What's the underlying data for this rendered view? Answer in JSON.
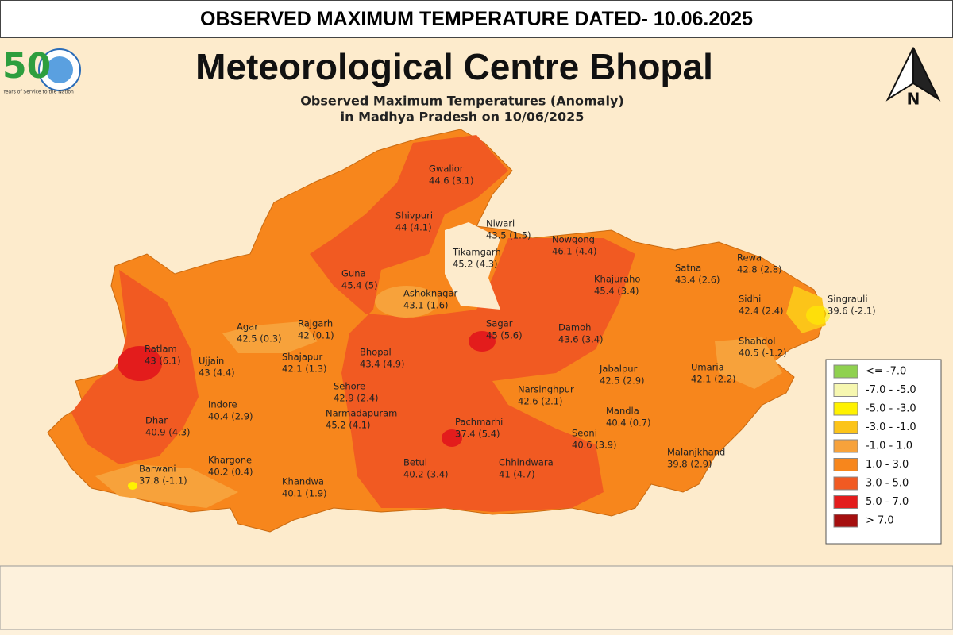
{
  "header": {
    "title": "OBSERVED MAXIMUM TEMPERATURE DATED- 10.06.2025"
  },
  "logo": {
    "number": "50",
    "caption": "Years of Service to the Nation"
  },
  "title": "Meteorological Centre Bhopal",
  "subtitle": [
    "Observed Maximum Temperatures (Anomaly)",
    "in Madhya Pradesh on 10/06/2025"
  ],
  "north": "N",
  "cities": [
    {
      "name": "Gwalior",
      "reading": "44.6 (3.1)"
    },
    {
      "name": "Shivpuri",
      "reading": "44 (4.1)"
    },
    {
      "name": "Niwari",
      "reading": "43.5 (1.5)"
    },
    {
      "name": "Nowgong",
      "reading": "46.1 (4.4)"
    },
    {
      "name": "Tikamgarh",
      "reading": "45.2 (4.3)"
    },
    {
      "name": "Guna",
      "reading": "45.4 (5)"
    },
    {
      "name": "Ashoknagar",
      "reading": "43.1 (1.6)"
    },
    {
      "name": "Khajuraho",
      "reading": "45.4 (3.4)"
    },
    {
      "name": "Satna",
      "reading": "43.4 (2.6)"
    },
    {
      "name": "Rewa",
      "reading": "42.8 (2.8)"
    },
    {
      "name": "Singrauli",
      "reading": "39.6 (-2.1)"
    },
    {
      "name": "Sidhi",
      "reading": "42.4 (2.4)"
    },
    {
      "name": "Agar",
      "reading": "42.5 (0.3)"
    },
    {
      "name": "Rajgarh",
      "reading": "42 (0.1)"
    },
    {
      "name": "Sagar",
      "reading": "45 (5.6)"
    },
    {
      "name": "Damoh",
      "reading": "43.6 (3.4)"
    },
    {
      "name": "Shahdol",
      "reading": "40.5 (-1.2)"
    },
    {
      "name": "Ratlam",
      "reading": "43 (6.1)"
    },
    {
      "name": "Ujjain",
      "reading": "43 (4.4)"
    },
    {
      "name": "Bhopal",
      "reading": "43.4 (4.9)"
    },
    {
      "name": "Shajapur",
      "reading": "42.1 (1.3)"
    },
    {
      "name": "Jabalpur",
      "reading": "42.5 (2.9)"
    },
    {
      "name": "Umaria",
      "reading": "42.1 (2.2)"
    },
    {
      "name": "Sehore",
      "reading": "42.9 (2.4)"
    },
    {
      "name": "Narsinghpur",
      "reading": "42.6 (2.1)"
    },
    {
      "name": "Indore",
      "reading": "40.4 (2.9)"
    },
    {
      "name": "Mandla",
      "reading": "40.4 (0.7)"
    },
    {
      "name": "Narmadapuram",
      "reading": "45.2 (4.1)"
    },
    {
      "name": "Pachmarhi",
      "reading": "37.4 (5.4)"
    },
    {
      "name": "Dhar",
      "reading": "40.9 (4.3)"
    },
    {
      "name": "Seoni",
      "reading": "40.6 (3.9)"
    },
    {
      "name": "Malanjkhand",
      "reading": "39.8 (2.9)"
    },
    {
      "name": "Barwani",
      "reading": "37.8 (-1.1)"
    },
    {
      "name": "Khargone",
      "reading": "40.2 (0.4)"
    },
    {
      "name": "Betul",
      "reading": "40.2 (3.4)"
    },
    {
      "name": "Chhindwara",
      "reading": "41 (4.7)"
    },
    {
      "name": "Khandwa",
      "reading": "40.1 (1.9)"
    }
  ],
  "legend": [
    {
      "label": "<= -7.0",
      "color": "#8fd14f"
    },
    {
      "label": "-7.0 - -5.0",
      "color": "#f6f7b0"
    },
    {
      "label": "-5.0 - -3.0",
      "color": "#fff200"
    },
    {
      "label": "-3.0 - -1.0",
      "color": "#fcc419"
    },
    {
      "label": "-1.0 - 1.0",
      "color": "#f7a23b"
    },
    {
      "label": "1.0 - 3.0",
      "color": "#f7861c"
    },
    {
      "label": "3.0 - 5.0",
      "color": "#f15a22"
    },
    {
      "label": "5.0 - 7.0",
      "color": "#e31c1c"
    },
    {
      "label": "> 7.0",
      "color": "#a50f0f"
    }
  ]
}
